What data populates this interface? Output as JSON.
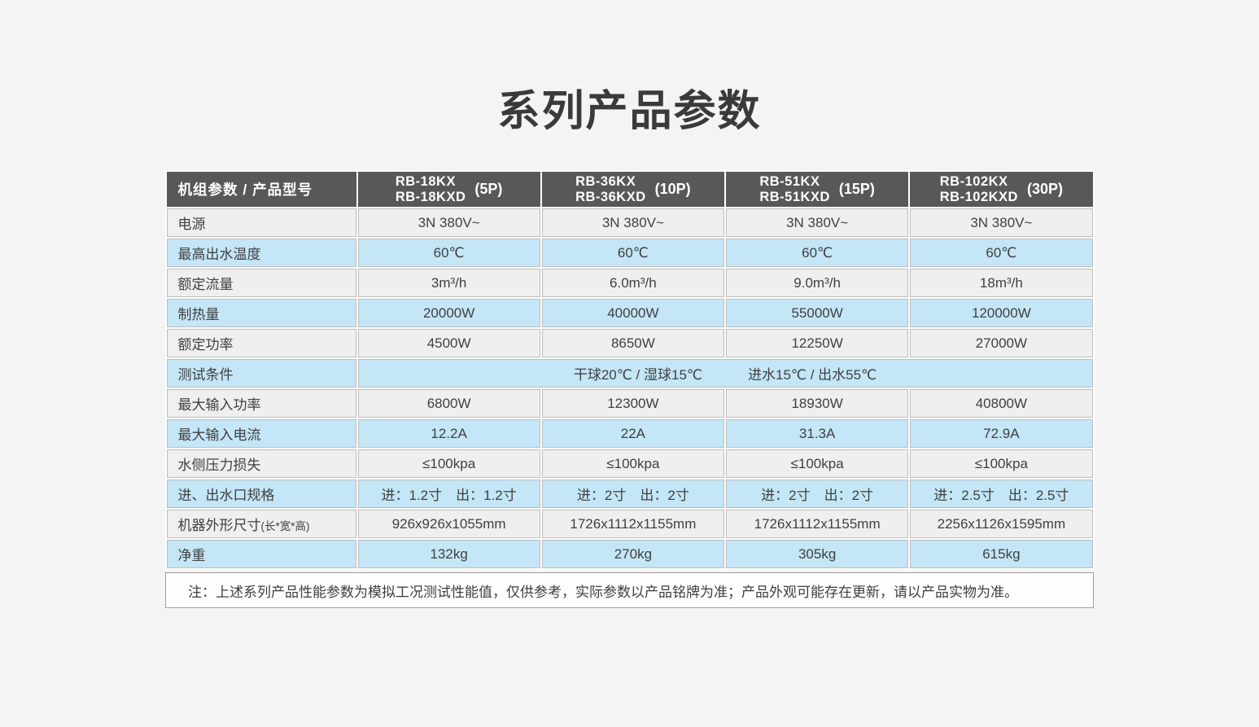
{
  "page": {
    "title": "系列产品参数"
  },
  "colors": {
    "page_background": "#f4f4f5",
    "header_background": "#58585a",
    "row_blue": "#c4e6f6",
    "row_gray": "#efefef",
    "cell_border": "#bdbdbd",
    "header_text": "#ffffff",
    "body_text": "#404042"
  },
  "table": {
    "corner_header": "机组参数 / 产品型号",
    "models": [
      {
        "line1": "RB-18KX",
        "line2": "RB-18KXD",
        "power": "(5P)"
      },
      {
        "line1": "RB-36KX",
        "line2": "RB-36KXD",
        "power": "(10P)"
      },
      {
        "line1": "RB-51KX",
        "line2": "RB-51KXD",
        "power": "(15P)"
      },
      {
        "line1": "RB-102KX",
        "line2": "RB-102KXD",
        "power": "(30P)"
      }
    ],
    "rows": [
      {
        "label": "电源",
        "values": [
          "3N 380V~",
          "3N 380V~",
          "3N 380V~",
          "3N 380V~"
        ]
      },
      {
        "label": "最高出水温度",
        "values": [
          "60℃",
          "60℃",
          "60℃",
          "60℃"
        ]
      },
      {
        "label": "额定流量",
        "values": [
          "3m³/h",
          "6.0m³/h",
          "9.0m³/h",
          "18m³/h"
        ]
      },
      {
        "label": "制热量",
        "values": [
          "20000W",
          "40000W",
          "55000W",
          "120000W"
        ]
      },
      {
        "label": "额定功率",
        "values": [
          "4500W",
          "8650W",
          "12250W",
          "27000W"
        ]
      },
      {
        "label": "测试条件",
        "values": [
          "干球20℃ / 湿球15℃",
          "进水15℃ / 出水55℃"
        ]
      },
      {
        "label": "最大输入功率",
        "values": [
          "6800W",
          "12300W",
          "18930W",
          "40800W"
        ]
      },
      {
        "label": "最大输入电流",
        "values": [
          "12.2A",
          "22A",
          "31.3A",
          "72.9A"
        ]
      },
      {
        "label": "水侧压力损失",
        "values": [
          "≤100kpa",
          "≤100kpa",
          "≤100kpa",
          "≤100kpa"
        ]
      },
      {
        "label": "进、出水口规格",
        "values": [
          "进：1.2寸　出：1.2寸",
          "进：2寸　出：2寸",
          "进：2寸　出：2寸",
          "进：2.5寸　出：2.5寸"
        ]
      },
      {
        "label": "机器外形尺寸",
        "label_suffix": "(长*宽*高)",
        "values": [
          "926x926x1055mm",
          "1726x1112x1155mm",
          "1726x1112x1155mm",
          "2256x1126x1595mm"
        ]
      },
      {
        "label": "净重",
        "values": [
          "132kg",
          "270kg",
          "305kg",
          "615kg"
        ]
      }
    ],
    "note": "注：上述系列产品性能参数为模拟工况测试性能值，仅供参考，实际参数以产品铭牌为准；产品外观可能存在更新，请以产品实物为准。"
  }
}
